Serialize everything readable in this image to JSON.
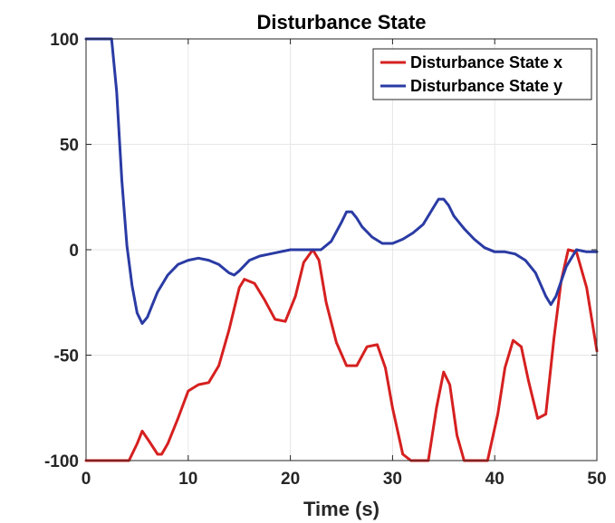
{
  "chart_data": {
    "type": "line",
    "title": "Disturbance State",
    "xlabel": "Time (s)",
    "ylabel": "",
    "xlim": [
      0,
      50
    ],
    "ylim": [
      -100,
      100
    ],
    "xticks": [
      0,
      10,
      20,
      30,
      40,
      50
    ],
    "yticks": [
      -100,
      -50,
      0,
      50,
      100
    ],
    "grid": true,
    "legend": "top-right",
    "series": [
      {
        "name": "Disturbance State x",
        "color": "#d62020",
        "x": [
          0,
          4.2,
          5,
          5.5,
          6.2,
          7,
          7.4,
          8,
          9,
          10,
          11,
          12,
          13,
          14,
          15,
          15.5,
          16.5,
          17.5,
          18.5,
          19.5,
          20.5,
          21.3,
          22.2,
          22.8,
          23.5,
          24.5,
          25.5,
          26.5,
          27.5,
          28.5,
          29.3,
          30,
          31,
          31.8,
          32.5,
          33.5,
          34.3,
          35,
          35.6,
          36.3,
          37,
          38,
          39.3,
          40.3,
          41,
          41.8,
          42.6,
          43.3,
          44.2,
          45,
          45.8,
          46.5,
          47.2,
          48,
          49,
          50
        ],
        "y": [
          -100,
          -100,
          -92,
          -86,
          -91,
          -97,
          -97,
          -92,
          -80,
          -67,
          -64,
          -63,
          -55,
          -38,
          -18,
          -14,
          -16,
          -24,
          -33,
          -34,
          -22,
          -6,
          0,
          -5,
          -25,
          -44,
          -55,
          -55,
          -46,
          -45,
          -56,
          -75,
          -97,
          -100,
          -100,
          -100,
          -75,
          -58,
          -64,
          -88,
          -100,
          -100,
          -100,
          -78,
          -56,
          -43,
          -46,
          -62,
          -80,
          -78,
          -42,
          -15,
          0,
          -1,
          -18,
          -48
        ]
      },
      {
        "name": "Disturbance State y",
        "color": "#2a3ba4",
        "x": [
          0,
          2.5,
          3,
          3.5,
          4,
          4.5,
          5,
          5.5,
          6,
          6.5,
          7,
          8,
          9,
          10,
          11,
          12,
          13,
          14,
          14.5,
          15,
          16,
          17,
          18,
          19,
          20,
          21,
          22,
          23,
          24,
          25,
          25.5,
          26,
          26.5,
          27,
          28,
          29,
          30,
          31,
          32,
          33,
          34,
          34.5,
          35,
          35.5,
          36,
          37,
          38,
          39,
          40,
          41,
          42,
          43,
          44,
          45,
          45.5,
          46,
          47,
          48,
          49,
          50
        ],
        "y": [
          100,
          100,
          75,
          33,
          2,
          -17,
          -30,
          -35,
          -32,
          -26,
          -20,
          -12,
          -7,
          -5,
          -4,
          -5,
          -7,
          -11,
          -12,
          -10,
          -5,
          -3,
          -2,
          -1,
          0,
          0,
          0,
          0,
          4,
          13,
          18,
          18,
          15,
          11,
          6,
          3,
          3,
          5,
          8,
          12,
          20,
          24,
          24,
          21,
          16,
          10,
          5,
          1,
          -1,
          -1,
          -2,
          -5,
          -11,
          -22,
          -26,
          -22,
          -8,
          0,
          -1,
          -1
        ]
      }
    ]
  }
}
